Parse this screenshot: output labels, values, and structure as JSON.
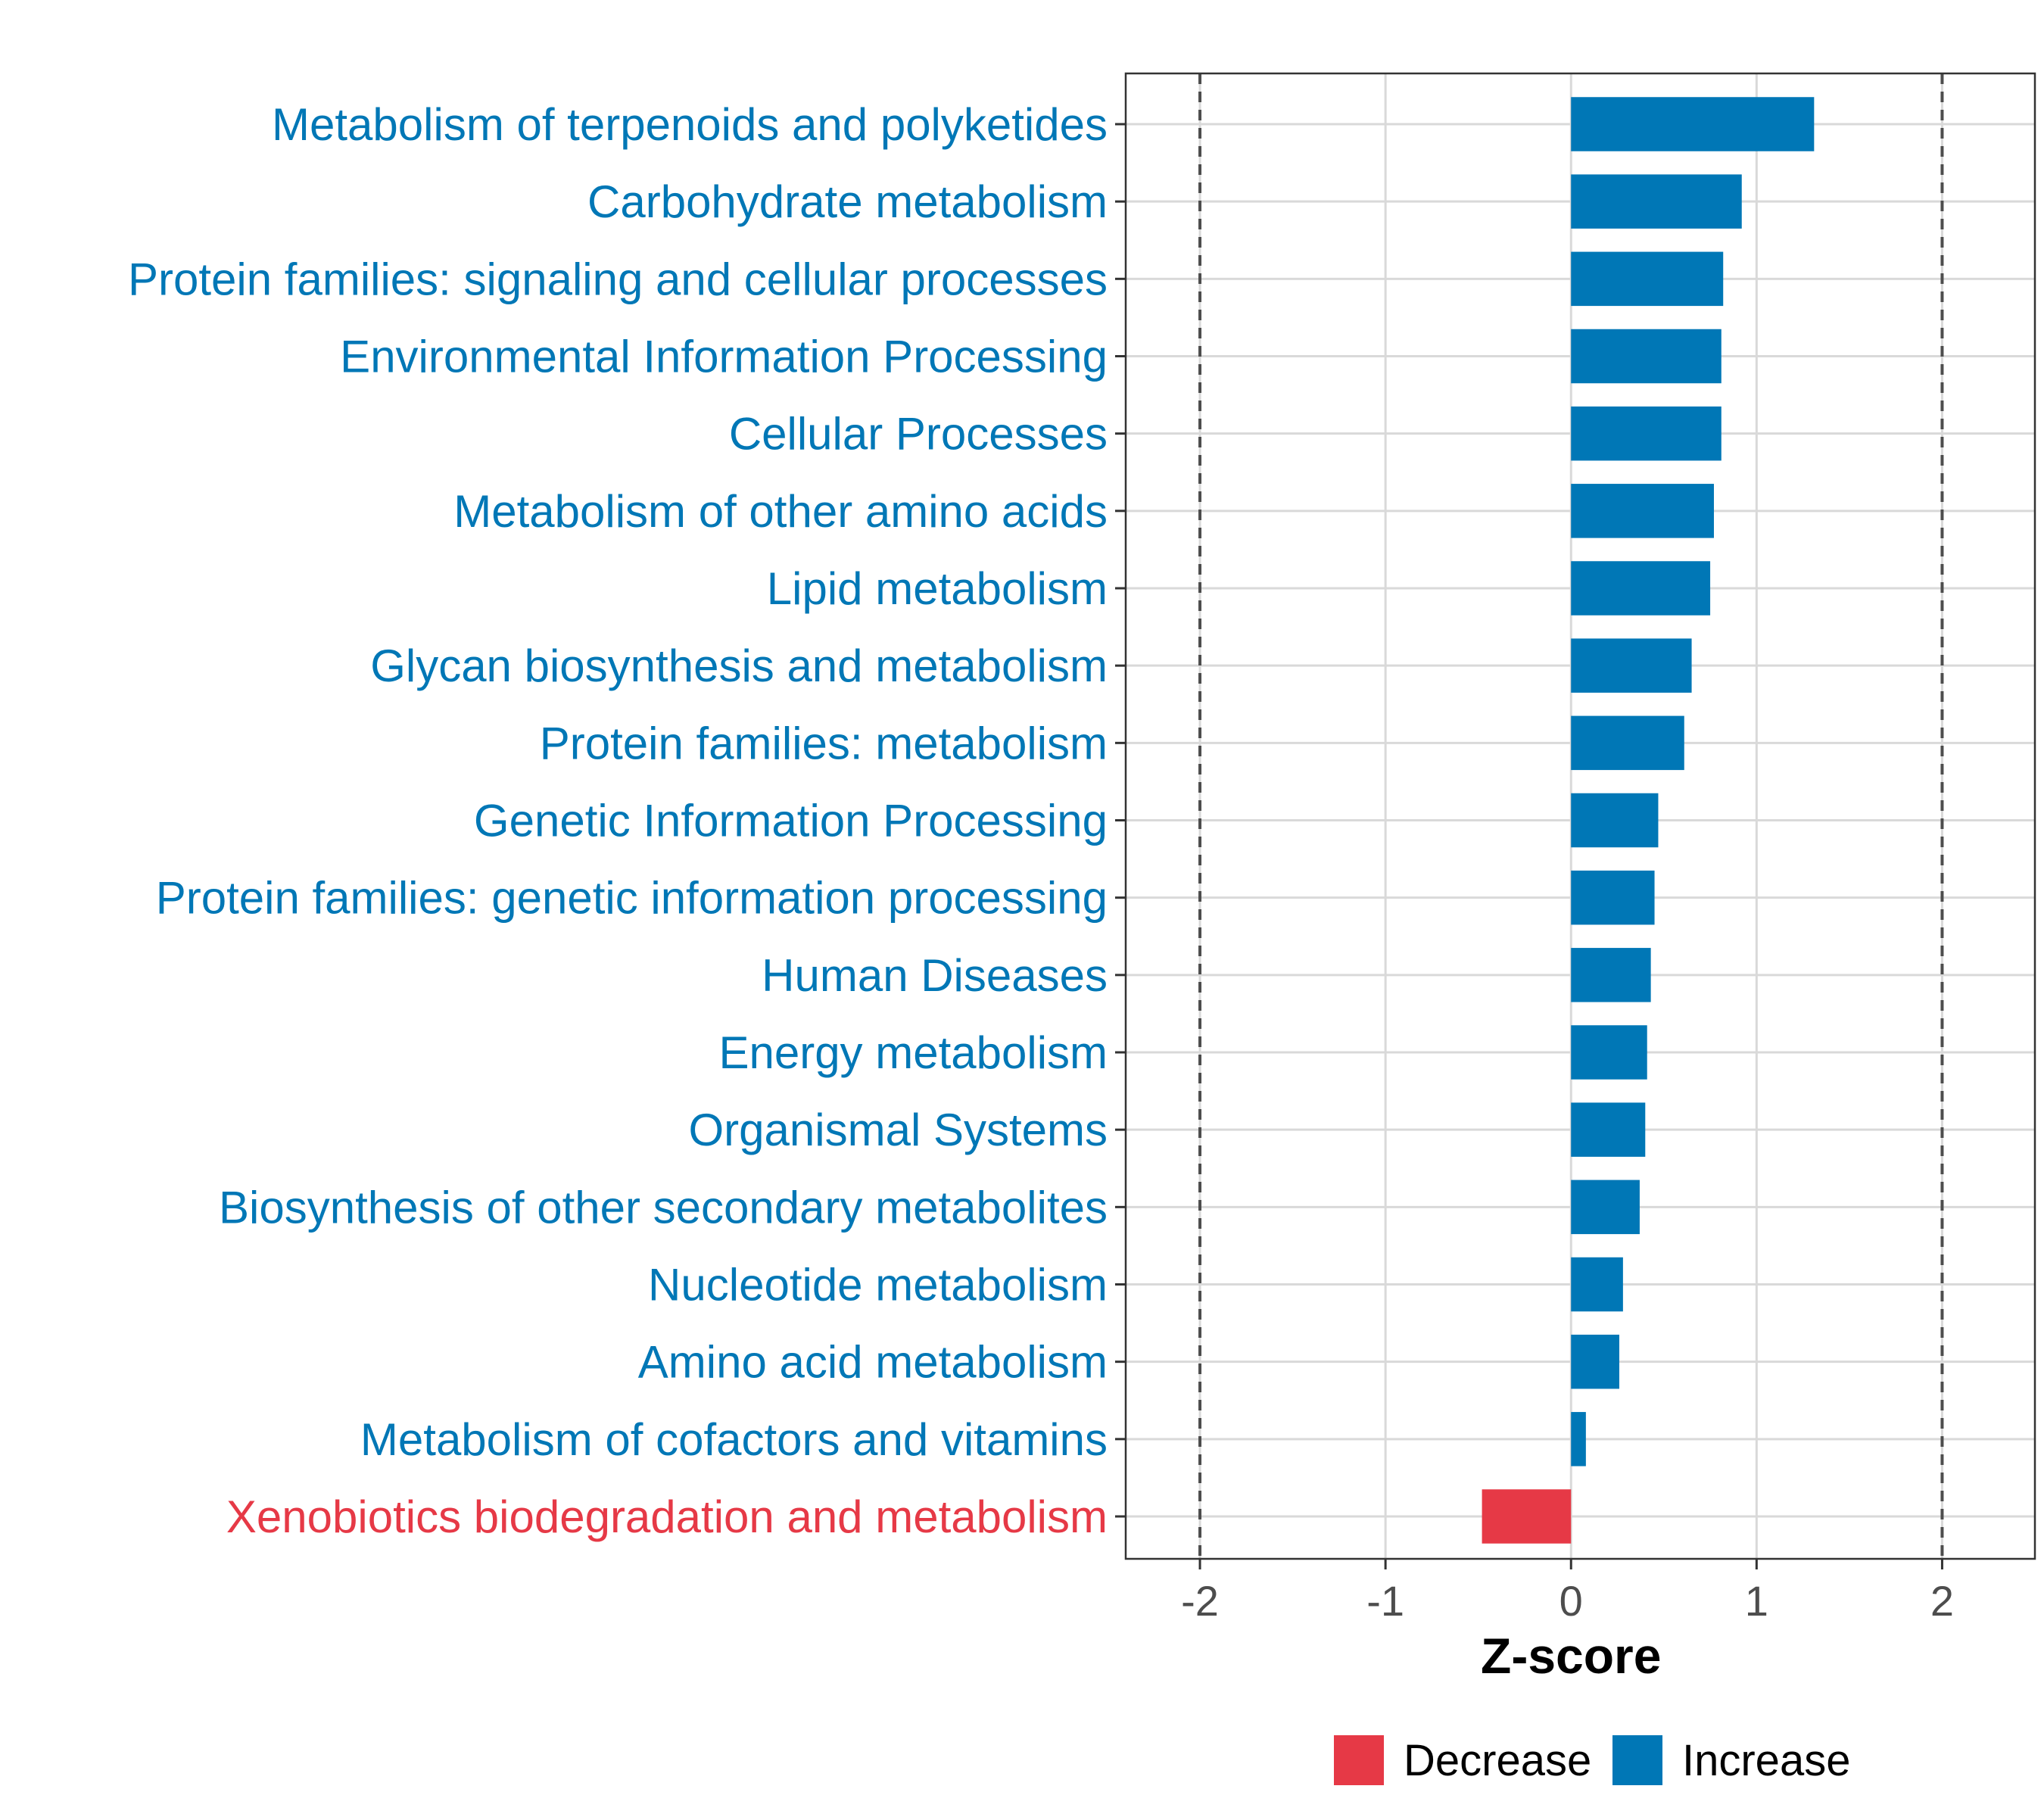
{
  "chart_data": {
    "type": "bar",
    "orientation": "horizontal",
    "xlabel": "Z-score",
    "xlim": [
      -2.4,
      2.5
    ],
    "xticks": [
      -2,
      -1,
      0,
      1,
      2
    ],
    "xtick_labels": [
      "-2",
      "-1",
      "0",
      "1",
      "2"
    ],
    "reference_lines": [
      -2,
      2
    ],
    "grid": true,
    "legend_position": "bottom",
    "categories": [
      "Metabolism of terpenoids and polyketides",
      "Carbohydrate metabolism",
      "Protein families: signaling and cellular processes",
      "Environmental Information Processing",
      "Cellular Processes",
      "Metabolism of other amino acids",
      "Lipid metabolism",
      "Glycan biosynthesis and metabolism",
      "Protein families: metabolism",
      "Genetic Information Processing",
      "Protein families: genetic information processing",
      "Human Diseases",
      "Energy metabolism",
      "Organismal Systems",
      "Biosynthesis of other secondary metabolites",
      "Nucleotide metabolism",
      "Amino acid metabolism",
      "Metabolism of cofactors and vitamins",
      "Xenobiotics biodegradation and metabolism"
    ],
    "values": [
      1.31,
      0.92,
      0.82,
      0.81,
      0.81,
      0.77,
      0.75,
      0.65,
      0.61,
      0.47,
      0.45,
      0.43,
      0.41,
      0.4,
      0.37,
      0.28,
      0.26,
      0.08,
      -0.48
    ],
    "groups": [
      "Increase",
      "Increase",
      "Increase",
      "Increase",
      "Increase",
      "Increase",
      "Increase",
      "Increase",
      "Increase",
      "Increase",
      "Increase",
      "Increase",
      "Increase",
      "Increase",
      "Increase",
      "Increase",
      "Increase",
      "Increase",
      "Decrease"
    ],
    "legend": [
      {
        "label": "Decrease",
        "color": "#E63946"
      },
      {
        "label": "Increase",
        "color": "#0077B6"
      }
    ]
  }
}
